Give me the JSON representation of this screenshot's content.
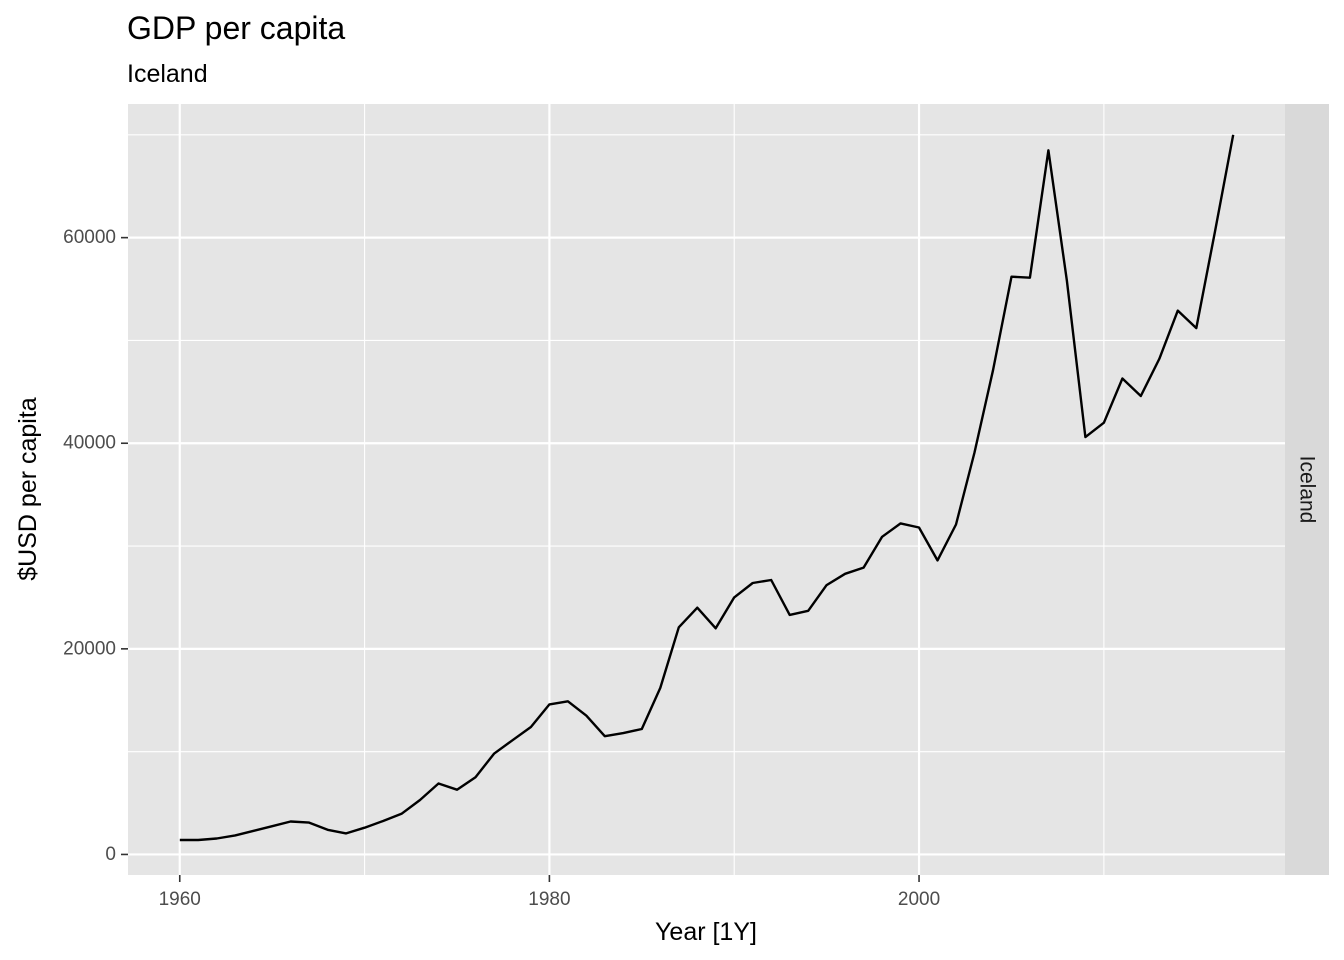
{
  "chart_data": {
    "type": "line",
    "title": "GDP per capita",
    "subtitle": "Iceland",
    "xlabel": "Year [1Y]",
    "ylabel": "$USD per capita",
    "facet_label": "Iceland",
    "xlim": [
      1957.2,
      2019.8
    ],
    "ylim": [
      -2000,
      73000
    ],
    "x_ticks": [
      1960,
      1980,
      2000
    ],
    "x_minor_ticks": [
      1970,
      1990,
      2010
    ],
    "y_ticks": [
      0,
      20000,
      40000,
      60000
    ],
    "y_minor_ticks": [
      10000,
      30000,
      50000,
      70000
    ],
    "grid": true,
    "legend": "none",
    "colors": {
      "panel": "#e5e5e5",
      "grid": "#ffffff",
      "strip": "#d9d9d9",
      "line": "#000000"
    },
    "series": [
      {
        "x": [
          1960,
          1961,
          1962,
          1963,
          1964,
          1965,
          1966,
          1967,
          1968,
          1969,
          1970,
          1971,
          1972,
          1973,
          1974,
          1975,
          1976,
          1977,
          1978,
          1979,
          1980,
          1981,
          1982,
          1983,
          1984,
          1985,
          1986,
          1987,
          1988,
          1989,
          1990,
          1991,
          1992,
          1993,
          1994,
          1995,
          1996,
          1997,
          1998,
          1999,
          2000,
          2001,
          2002,
          2003,
          2004,
          2005,
          2006,
          2007,
          2008,
          2009,
          2010,
          2011,
          2012,
          2013,
          2014,
          2015,
          2016,
          2017
        ],
        "values": [
          1400,
          1400,
          1550,
          1850,
          2300,
          2750,
          3200,
          3100,
          2400,
          2050,
          2600,
          3250,
          3950,
          5300,
          6900,
          6300,
          7500,
          9800,
          11100,
          12400,
          14600,
          14900,
          13500,
          11500,
          11800,
          12200,
          16200,
          22100,
          24000,
          22000,
          25000,
          26400,
          26700,
          23300,
          23700,
          26200,
          27300,
          27900,
          30900,
          32200,
          31800,
          28600,
          32100,
          39100,
          47100,
          56200,
          56100,
          68500,
          55800,
          40600,
          42000,
          46300,
          44600,
          48200,
          52900,
          51200,
          60500,
          70000
        ]
      }
    ]
  }
}
